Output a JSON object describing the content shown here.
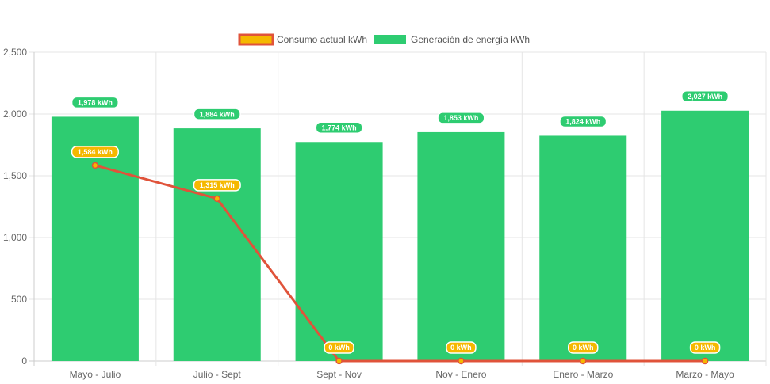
{
  "chart_data": {
    "type": "bar",
    "categories": [
      "Mayo - Julio",
      "Julio - Sept",
      "Sept - Nov",
      "Nov - Enero",
      "Enero - Marzo",
      "Marzo - Mayo"
    ],
    "series": [
      {
        "name": "Consumo actual kWh",
        "type": "line",
        "values": [
          1584,
          1315,
          0,
          0,
          0,
          0
        ],
        "labels": [
          "1,584 kWh",
          "1,315 kWh",
          "0 kWh",
          "0 kWh",
          "0 kWh",
          "0 kWh"
        ],
        "color": "#e0533a",
        "fill_color": "#f5b800"
      },
      {
        "name": "Generación de energía kWh",
        "type": "bar",
        "values": [
          1978,
          1884,
          1774,
          1853,
          1824,
          2027
        ],
        "labels": [
          "1,978 kWh",
          "1,884 kWh",
          "1,774 kWh",
          "1,853 kWh",
          "1,824 kWh",
          "2,027 kWh"
        ],
        "color": "#2ecc71"
      }
    ],
    "y_ticks": [
      "0",
      "500",
      "1,000",
      "1,500",
      "2,000",
      "2,500"
    ],
    "ylim": [
      0,
      2500
    ],
    "grid": true,
    "legend_position": "top"
  }
}
